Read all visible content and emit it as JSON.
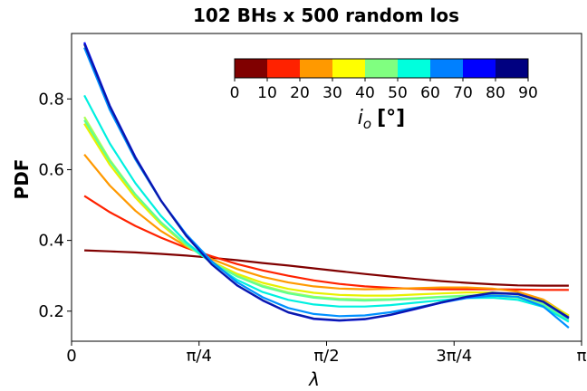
{
  "chart_data": {
    "type": "line",
    "title": "102 BHs x 500 random los",
    "xlabel": "λ",
    "ylabel": "PDF",
    "xlim": [
      0,
      3.14159
    ],
    "ylim": [
      0.115,
      0.985
    ],
    "x_ticks": [
      {
        "value": 0,
        "label": "0"
      },
      {
        "value": 0.7854,
        "label": "π/4"
      },
      {
        "value": 1.5708,
        "label": "π/2"
      },
      {
        "value": 2.3562,
        "label": "3π/4"
      },
      {
        "value": 3.1416,
        "label": "π"
      }
    ],
    "y_ticks": [
      {
        "value": 0.2,
        "label": "0.2"
      },
      {
        "value": 0.4,
        "label": "0.4"
      },
      {
        "value": 0.6,
        "label": "0.6"
      },
      {
        "value": 0.8,
        "label": "0.8"
      }
    ],
    "x": [
      0.0785,
      0.2356,
      0.3927,
      0.5498,
      0.7069,
      0.8639,
      1.021,
      1.1781,
      1.3352,
      1.4923,
      1.6493,
      1.8064,
      1.9635,
      2.1206,
      2.2777,
      2.4347,
      2.5918,
      2.7489,
      2.906,
      3.0631
    ],
    "colorbar": {
      "label_main": "i",
      "label_sub": "o",
      "label_unit": "[°]",
      "ticks": [
        "0",
        "10",
        "20",
        "30",
        "40",
        "50",
        "60",
        "70",
        "80",
        "90"
      ],
      "colors": [
        "#800000",
        "#ff2200",
        "#ff9900",
        "#ffff00",
        "#80ff80",
        "#00ffdd",
        "#0080ff",
        "#0000ff",
        "#000080"
      ]
    },
    "series": [
      {
        "color": "#800000",
        "values": [
          0.372,
          0.369,
          0.366,
          0.362,
          0.357,
          0.351,
          0.344,
          0.336,
          0.329,
          0.321,
          0.313,
          0.305,
          0.298,
          0.291,
          0.285,
          0.28,
          0.276,
          0.273,
          0.272,
          0.272
        ]
      },
      {
        "color": "#ff2200",
        "values": [
          0.526,
          0.48,
          0.441,
          0.408,
          0.379,
          0.355,
          0.333,
          0.315,
          0.3,
          0.287,
          0.277,
          0.27,
          0.266,
          0.263,
          0.262,
          0.262,
          0.262,
          0.261,
          0.26,
          0.26
        ]
      },
      {
        "color": "#ff9900",
        "values": [
          0.643,
          0.555,
          0.484,
          0.427,
          0.383,
          0.347,
          0.319,
          0.297,
          0.281,
          0.27,
          0.264,
          0.262,
          0.263,
          0.265,
          0.267,
          0.267,
          0.264,
          0.255,
          0.233,
          0.187
        ]
      },
      {
        "color": "#e8f000",
        "values": [
          0.73,
          0.614,
          0.521,
          0.446,
          0.386,
          0.34,
          0.305,
          0.28,
          0.263,
          0.252,
          0.246,
          0.244,
          0.244,
          0.247,
          0.25,
          0.253,
          0.253,
          0.247,
          0.229,
          0.188
        ]
      },
      {
        "color": "#aaff55",
        "values": [
          0.749,
          0.628,
          0.53,
          0.451,
          0.388,
          0.338,
          0.3,
          0.272,
          0.253,
          0.241,
          0.235,
          0.233,
          0.234,
          0.237,
          0.241,
          0.244,
          0.246,
          0.24,
          0.222,
          0.181
        ]
      },
      {
        "color": "#60ff90",
        "values": [
          0.74,
          0.624,
          0.53,
          0.452,
          0.388,
          0.337,
          0.298,
          0.269,
          0.25,
          0.238,
          0.232,
          0.23,
          0.232,
          0.235,
          0.24,
          0.243,
          0.244,
          0.238,
          0.218,
          0.176
        ]
      },
      {
        "color": "#00f0e0",
        "values": [
          0.81,
          0.674,
          0.562,
          0.47,
          0.395,
          0.335,
          0.288,
          0.254,
          0.232,
          0.219,
          0.213,
          0.213,
          0.217,
          0.224,
          0.231,
          0.237,
          0.238,
          0.232,
          0.212,
          0.17
        ]
      },
      {
        "color": "#0090ff",
        "values": [
          0.945,
          0.769,
          0.629,
          0.513,
          0.417,
          0.341,
          0.281,
          0.239,
          0.209,
          0.192,
          0.186,
          0.188,
          0.197,
          0.21,
          0.224,
          0.237,
          0.244,
          0.241,
          0.213,
          0.153
        ]
      },
      {
        "color": "#0000ff",
        "values": [
          0.96,
          0.781,
          0.636,
          0.514,
          0.413,
          0.332,
          0.272,
          0.23,
          0.196,
          0.178,
          0.173,
          0.177,
          0.189,
          0.206,
          0.224,
          0.24,
          0.251,
          0.248,
          0.226,
          0.18
        ]
      },
      {
        "color": "#0a1aa8",
        "values": [
          0.955,
          0.779,
          0.634,
          0.513,
          0.412,
          0.332,
          0.273,
          0.231,
          0.197,
          0.179,
          0.174,
          0.178,
          0.19,
          0.207,
          0.225,
          0.241,
          0.252,
          0.249,
          0.227,
          0.182
        ]
      }
    ]
  }
}
